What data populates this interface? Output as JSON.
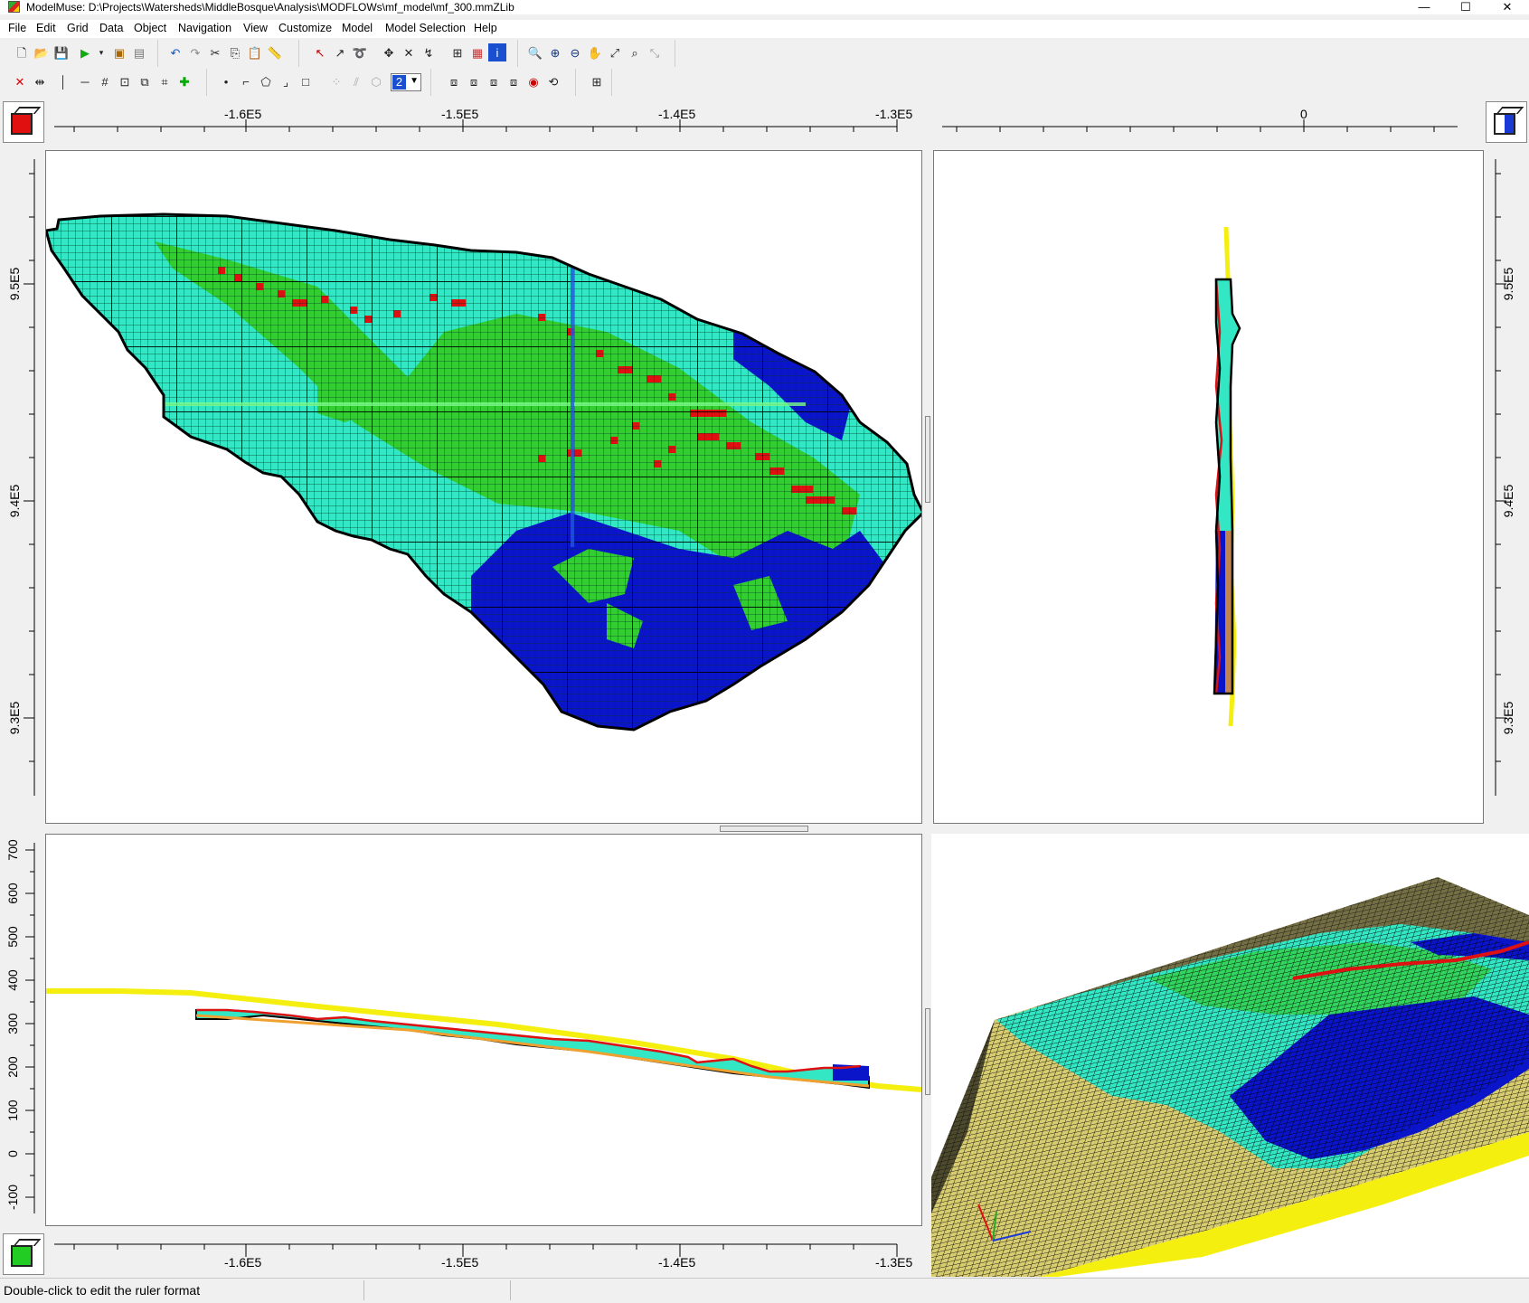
{
  "window": {
    "title": "ModelMuse: D:\\Projects\\Watersheds\\MiddleBosque\\Analysis\\MODFLOWs\\mf_model\\mf_300.mmZLib",
    "minimize": "—",
    "maximize": "☐",
    "close": "✕"
  },
  "menu": [
    "File",
    "Edit",
    "Grid",
    "Data",
    "Object",
    "Navigation",
    "View",
    "Customize",
    "Model",
    "Model Selection",
    "Help"
  ],
  "toolbar": {
    "layer_selector_value": "2"
  },
  "top_view": {
    "x_ticks": [
      "-1.6E5",
      "-1.5E5",
      "-1.4E5",
      "-1.3E5"
    ],
    "y_ticks": [
      "9.5E5",
      "9.4E5",
      "9.3E5"
    ]
  },
  "side_view": {
    "x_ticks": [
      "0"
    ],
    "y_ticks": [
      "9.5E5",
      "9.4E5",
      "9.3E5"
    ]
  },
  "front_view": {
    "z_ticks": [
      "700",
      "600",
      "500",
      "400",
      "300",
      "200",
      "100",
      "0",
      "-100"
    ],
    "x_ticks": [
      "-1.6E5",
      "-1.5E5",
      "-1.4E5",
      "-1.3E5"
    ]
  },
  "colors": {
    "cyan_zone": "#33e6c4",
    "green_zone": "#33cc33",
    "blue_zone": "#0a14c8",
    "river_cells": "#dd1111",
    "boundary_yellow": "#f5ef10"
  },
  "status": {
    "message": "Double-click to edit the ruler format"
  }
}
